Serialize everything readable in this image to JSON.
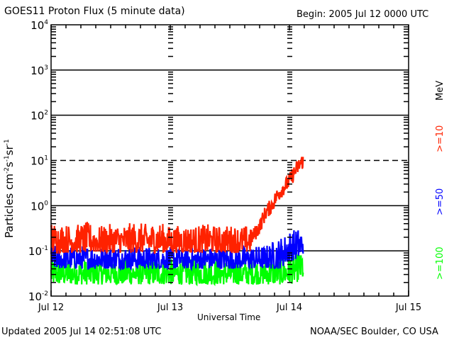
{
  "header": {
    "title": "GOES11 Proton Flux (5 minute data)",
    "begin": "Begin: 2005 Jul 12 0000 UTC"
  },
  "footer": {
    "updated": "Updated 2005 Jul 14 02:51:08 UTC",
    "credit": "NOAA/SEC Boulder, CO USA"
  },
  "chart_data": {
    "type": "line",
    "title": "GOES11 Proton Flux (5 minute data)",
    "xlabel": "Universal Time",
    "ylabel": "Particles cm-2 s-1 sr-1",
    "ylabel_parts": {
      "base": "Particles cm",
      "e1": "-2",
      "s": "s",
      "e2": "-1",
      "sr": "sr",
      "e3": "-1"
    },
    "yscale": "log",
    "ylim": [
      0.01,
      10000
    ],
    "yticks": [
      {
        "value": 10000,
        "base": "10",
        "exp": "4"
      },
      {
        "value": 1000,
        "base": "10",
        "exp": "3"
      },
      {
        "value": 100,
        "base": "10",
        "exp": "2"
      },
      {
        "value": 10,
        "base": "10",
        "exp": "1"
      },
      {
        "value": 1,
        "base": "10",
        "exp": "0"
      },
      {
        "value": 0.1,
        "base": "10",
        "exp": "-1"
      },
      {
        "value": 0.01,
        "base": "10",
        "exp": "-2"
      }
    ],
    "xlim_days": [
      0,
      3
    ],
    "xticks": [
      {
        "day": 0,
        "label": "Jul 12"
      },
      {
        "day": 1,
        "label": "Jul 13"
      },
      {
        "day": 2,
        "label": "Jul 14"
      },
      {
        "day": 3,
        "label": "Jul 15"
      }
    ],
    "minor_xtick_hours": 3,
    "gridlines_decades": [
      1000,
      100,
      1,
      0.1
    ],
    "dashed_threshold": 10,
    "data_end_day": 2.118,
    "legend_unit": "MeV",
    "legend_placement": "right",
    "series": [
      {
        "name": ">=10",
        "color": "#ff2200",
        "description": "Noisy background ~0.1-0.4 until ~Jul 13 16 UTC, then rising to ~10 by Jul 14 02:50 UTC",
        "points": [
          [
            0.0,
            0.2
          ],
          [
            0.1,
            0.18
          ],
          [
            0.2,
            0.17
          ],
          [
            0.3,
            0.2
          ],
          [
            0.4,
            0.16
          ],
          [
            0.5,
            0.18
          ],
          [
            0.6,
            0.17
          ],
          [
            0.7,
            0.2
          ],
          [
            0.8,
            0.18
          ],
          [
            0.9,
            0.2
          ],
          [
            1.0,
            0.16
          ],
          [
            1.1,
            0.17
          ],
          [
            1.2,
            0.16
          ],
          [
            1.3,
            0.18
          ],
          [
            1.4,
            0.16
          ],
          [
            1.5,
            0.17
          ],
          [
            1.6,
            0.16
          ],
          [
            1.65,
            0.17
          ],
          [
            1.7,
            0.22
          ],
          [
            1.75,
            0.35
          ],
          [
            1.8,
            0.7
          ],
          [
            1.85,
            1.0
          ],
          [
            1.9,
            1.7
          ],
          [
            1.95,
            2.5
          ],
          [
            2.0,
            3.5
          ],
          [
            2.05,
            6.0
          ],
          [
            2.1,
            9.0
          ],
          [
            2.118,
            10.0
          ]
        ],
        "noise_low": 0.09,
        "noise_high": 0.45
      },
      {
        "name": ">=50",
        "color": "#0000ff",
        "description": "Background ~0.04-0.12 then rising to ~0.2 near end",
        "points": [
          [
            0.0,
            0.06
          ],
          [
            0.5,
            0.06
          ],
          [
            1.0,
            0.055
          ],
          [
            1.5,
            0.055
          ],
          [
            1.8,
            0.06
          ],
          [
            1.95,
            0.1
          ],
          [
            2.0,
            0.13
          ],
          [
            2.05,
            0.14
          ],
          [
            2.1,
            0.15
          ],
          [
            2.118,
            0.2
          ]
        ],
        "noise_low": 0.04,
        "noise_high": 0.13
      },
      {
        "name": ">=100",
        "color": "#00ff00",
        "description": "Background ~0.02-0.06",
        "points": [
          [
            0.0,
            0.03
          ],
          [
            1.0,
            0.03
          ],
          [
            1.9,
            0.03
          ],
          [
            2.0,
            0.04
          ],
          [
            2.118,
            0.05
          ]
        ],
        "noise_low": 0.018,
        "noise_high": 0.08
      }
    ]
  }
}
